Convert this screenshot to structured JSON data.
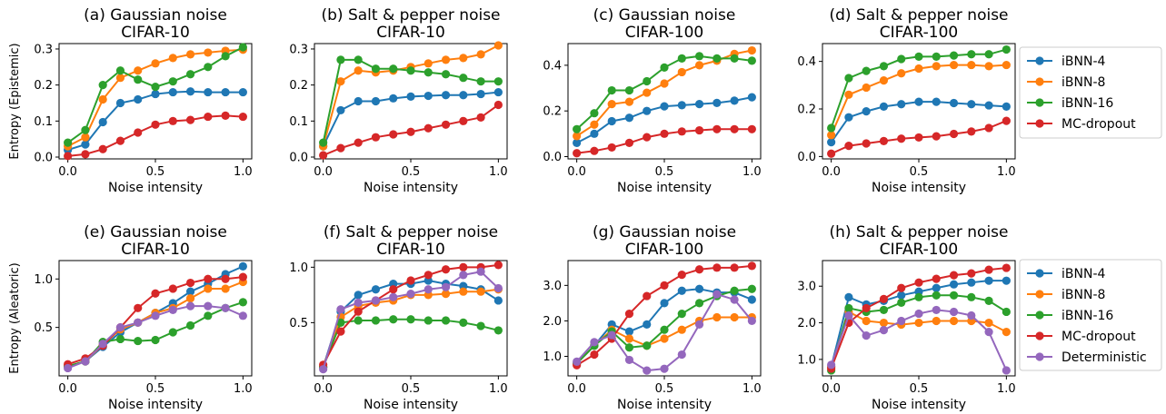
{
  "figure": {
    "row_ylabels": [
      "Entropy (Epistemic)",
      "Entropy (Aleatoric)"
    ]
  },
  "colors": {
    "iBNN-4": "#1f77b4",
    "iBNN-8": "#ff7f0e",
    "iBNN-16": "#2ca02c",
    "MC-dropout": "#d62728",
    "Deterministic": "#9467bd"
  },
  "legends": [
    {
      "row": 0,
      "entries": [
        "iBNN-4",
        "iBNN-8",
        "iBNN-16",
        "MC-dropout"
      ]
    },
    {
      "row": 1,
      "entries": [
        "iBNN-4",
        "iBNN-8",
        "iBNN-16",
        "MC-dropout",
        "Deterministic"
      ]
    }
  ],
  "chart_data": [
    {
      "type": "line",
      "title": "(a) Gaussian noise\nCIFAR-10",
      "xlabel": "Noise intensity",
      "ylabel": "Entropy (Epistemic)",
      "x": [
        0,
        0.1,
        0.2,
        0.3,
        0.4,
        0.5,
        0.6,
        0.7,
        0.8,
        0.9,
        1.0
      ],
      "xlim": [
        -0.05,
        1.05
      ],
      "ylim": [
        -0.005,
        0.315
      ],
      "xticks": [
        0.0,
        0.5,
        1.0
      ],
      "xtick_labels": [
        "0.0",
        "0.5",
        "1.0"
      ],
      "yticks": [
        0.0,
        0.1,
        0.2,
        0.3
      ],
      "ytick_labels": [
        "0.0",
        "0.1",
        "0.2",
        "0.3"
      ],
      "series": [
        {
          "name": "iBNN-4",
          "values": [
            0.02,
            0.035,
            0.097,
            0.15,
            0.16,
            0.175,
            0.18,
            0.182,
            0.18,
            0.18,
            0.18
          ]
        },
        {
          "name": "iBNN-8",
          "values": [
            0.03,
            0.055,
            0.16,
            0.22,
            0.24,
            0.26,
            0.275,
            0.285,
            0.29,
            0.295,
            0.298
          ]
        },
        {
          "name": "iBNN-16",
          "values": [
            0.04,
            0.075,
            0.2,
            0.24,
            0.215,
            0.195,
            0.21,
            0.23,
            0.25,
            0.28,
            0.305
          ]
        },
        {
          "name": "MC-dropout",
          "values": [
            0.003,
            0.008,
            0.022,
            0.045,
            0.068,
            0.09,
            0.1,
            0.103,
            0.112,
            0.115,
            0.112
          ]
        }
      ]
    },
    {
      "type": "line",
      "title": "(b) Salt & pepper noise\nCIFAR-10",
      "xlabel": "Noise intensity",
      "x": [
        0,
        0.1,
        0.2,
        0.3,
        0.4,
        0.5,
        0.6,
        0.7,
        0.8,
        0.9,
        1.0
      ],
      "xlim": [
        -0.05,
        1.05
      ],
      "ylim": [
        -0.005,
        0.315
      ],
      "xticks": [
        0.0,
        0.5,
        1.0
      ],
      "xtick_labels": [
        "0.0",
        "0.5",
        "1.0"
      ],
      "yticks": [
        0.0,
        0.1,
        0.2,
        0.3
      ],
      "ytick_labels": [
        "0.0",
        "0.1",
        "0.2",
        "0.3"
      ],
      "series": [
        {
          "name": "iBNN-4",
          "values": [
            0.03,
            0.13,
            0.155,
            0.155,
            0.163,
            0.168,
            0.17,
            0.172,
            0.172,
            0.175,
            0.18
          ]
        },
        {
          "name": "iBNN-8",
          "values": [
            0.03,
            0.21,
            0.24,
            0.235,
            0.24,
            0.25,
            0.26,
            0.27,
            0.275,
            0.285,
            0.31
          ]
        },
        {
          "name": "iBNN-16",
          "values": [
            0.04,
            0.27,
            0.27,
            0.245,
            0.245,
            0.24,
            0.235,
            0.23,
            0.22,
            0.21,
            0.21
          ]
        },
        {
          "name": "MC-dropout",
          "values": [
            0.005,
            0.025,
            0.04,
            0.055,
            0.063,
            0.07,
            0.08,
            0.09,
            0.1,
            0.11,
            0.145
          ]
        }
      ]
    },
    {
      "type": "line",
      "title": "(c) Gaussian noise\nCIFAR-100",
      "xlabel": "Noise intensity",
      "x": [
        0,
        0.1,
        0.2,
        0.3,
        0.4,
        0.5,
        0.6,
        0.7,
        0.8,
        0.9,
        1.0
      ],
      "xlim": [
        -0.05,
        1.05
      ],
      "ylim": [
        -0.01,
        0.495
      ],
      "xticks": [
        0.0,
        0.5,
        1.0
      ],
      "xtick_labels": [
        "0.0",
        "0.5",
        "1.0"
      ],
      "yticks": [
        0.0,
        0.2,
        0.4
      ],
      "ytick_labels": [
        "0.0",
        "0.2",
        "0.4"
      ],
      "series": [
        {
          "name": "iBNN-4",
          "values": [
            0.06,
            0.1,
            0.155,
            0.17,
            0.2,
            0.22,
            0.225,
            0.23,
            0.235,
            0.245,
            0.26
          ]
        },
        {
          "name": "iBNN-8",
          "values": [
            0.09,
            0.14,
            0.23,
            0.24,
            0.28,
            0.32,
            0.37,
            0.4,
            0.42,
            0.45,
            0.465
          ]
        },
        {
          "name": "iBNN-16",
          "values": [
            0.12,
            0.19,
            0.29,
            0.29,
            0.33,
            0.39,
            0.43,
            0.44,
            0.43,
            0.43,
            0.42
          ]
        },
        {
          "name": "MC-dropout",
          "values": [
            0.015,
            0.025,
            0.04,
            0.06,
            0.085,
            0.1,
            0.11,
            0.115,
            0.12,
            0.12,
            0.12
          ]
        }
      ]
    },
    {
      "type": "line",
      "title": "(d) Salt & pepper noise\nCIFAR-100",
      "xlabel": "Noise intensity",
      "x": [
        0,
        0.1,
        0.2,
        0.3,
        0.4,
        0.5,
        0.6,
        0.7,
        0.8,
        0.9,
        1.0
      ],
      "xlim": [
        -0.05,
        1.05
      ],
      "ylim": [
        -0.01,
        0.475
      ],
      "xticks": [
        0.0,
        0.5,
        1.0
      ],
      "xtick_labels": [
        "0.0",
        "0.5",
        "1.0"
      ],
      "yticks": [
        0.0,
        0.2,
        0.4
      ],
      "ytick_labels": [
        "0.0",
        "0.2",
        "0.4"
      ],
      "series": [
        {
          "name": "iBNN-4",
          "values": [
            0.06,
            0.165,
            0.19,
            0.21,
            0.22,
            0.23,
            0.23,
            0.225,
            0.22,
            0.215,
            0.21
          ]
        },
        {
          "name": "iBNN-8",
          "values": [
            0.09,
            0.26,
            0.29,
            0.32,
            0.35,
            0.37,
            0.38,
            0.385,
            0.385,
            0.38,
            0.385
          ]
        },
        {
          "name": "iBNN-16",
          "values": [
            0.12,
            0.33,
            0.36,
            0.38,
            0.41,
            0.42,
            0.42,
            0.425,
            0.43,
            0.43,
            0.45
          ]
        },
        {
          "name": "MC-dropout",
          "values": [
            0.012,
            0.045,
            0.055,
            0.065,
            0.075,
            0.08,
            0.085,
            0.095,
            0.105,
            0.12,
            0.15
          ]
        }
      ]
    },
    {
      "type": "line",
      "title": "(e) Gaussian noise\nCIFAR-10",
      "xlabel": "Noise intensity",
      "ylabel": "Entropy (Aleatoric)",
      "x": [
        0,
        0.1,
        0.2,
        0.3,
        0.4,
        0.5,
        0.6,
        0.7,
        0.8,
        0.9,
        1.0
      ],
      "xlim": [
        -0.05,
        1.05
      ],
      "ylim": [
        0.0,
        1.19
      ],
      "xticks": [
        0.0,
        0.5,
        1.0
      ],
      "xtick_labels": [
        "0.0",
        "0.5",
        "1.0"
      ],
      "yticks": [
        0.5,
        1.0
      ],
      "ytick_labels": [
        "0.5",
        "1.0"
      ],
      "series": [
        {
          "name": "iBNN-4",
          "values": [
            0.1,
            0.15,
            0.3,
            0.45,
            0.55,
            0.65,
            0.75,
            0.87,
            0.95,
            1.05,
            1.13
          ]
        },
        {
          "name": "iBNN-8",
          "values": [
            0.1,
            0.15,
            0.32,
            0.48,
            0.55,
            0.65,
            0.7,
            0.8,
            0.9,
            0.9,
            0.97
          ]
        },
        {
          "name": "iBNN-16",
          "values": [
            0.1,
            0.15,
            0.35,
            0.38,
            0.36,
            0.37,
            0.45,
            0.52,
            0.62,
            0.7,
            0.76
          ]
        },
        {
          "name": "MC-dropout",
          "values": [
            0.12,
            0.18,
            0.31,
            0.5,
            0.7,
            0.85,
            0.9,
            0.96,
            1.0,
            1.0,
            1.02
          ]
        },
        {
          "name": "Deterministic",
          "values": [
            0.08,
            0.15,
            0.33,
            0.5,
            0.55,
            0.62,
            0.68,
            0.72,
            0.72,
            0.7,
            0.62
          ]
        }
      ]
    },
    {
      "type": "line",
      "title": "(f) Salt & pepper noise\nCIFAR-10",
      "xlabel": "Noise intensity",
      "x": [
        0,
        0.1,
        0.2,
        0.3,
        0.4,
        0.5,
        0.6,
        0.7,
        0.8,
        0.9,
        1.0
      ],
      "xlim": [
        -0.05,
        1.05
      ],
      "ylim": [
        0.02,
        1.06
      ],
      "xticks": [
        0.0,
        0.5,
        1.0
      ],
      "xtick_labels": [
        "0.0",
        "0.5",
        "1.0"
      ],
      "yticks": [
        0.5,
        1.0
      ],
      "ytick_labels": [
        "0.5",
        "1.0"
      ],
      "series": [
        {
          "name": "iBNN-4",
          "values": [
            0.1,
            0.6,
            0.75,
            0.8,
            0.85,
            0.85,
            0.88,
            0.85,
            0.83,
            0.8,
            0.7
          ]
        },
        {
          "name": "iBNN-8",
          "values": [
            0.1,
            0.55,
            0.65,
            0.68,
            0.7,
            0.75,
            0.75,
            0.76,
            0.78,
            0.78,
            0.8
          ]
        },
        {
          "name": "iBNN-16",
          "values": [
            0.1,
            0.5,
            0.52,
            0.52,
            0.53,
            0.53,
            0.52,
            0.52,
            0.5,
            0.47,
            0.43
          ]
        },
        {
          "name": "MC-dropout",
          "values": [
            0.12,
            0.42,
            0.6,
            0.7,
            0.8,
            0.88,
            0.93,
            0.98,
            1.0,
            1.0,
            1.02
          ]
        },
        {
          "name": "Deterministic",
          "values": [
            0.08,
            0.62,
            0.68,
            0.7,
            0.73,
            0.76,
            0.8,
            0.82,
            0.93,
            0.96,
            0.81
          ]
        }
      ]
    },
    {
      "type": "line",
      "title": "(g) Gaussian noise\nCIFAR-100",
      "xlabel": "Noise intensity",
      "x": [
        0,
        0.1,
        0.2,
        0.3,
        0.4,
        0.5,
        0.6,
        0.7,
        0.8,
        0.9,
        1.0
      ],
      "xlim": [
        -0.05,
        1.05
      ],
      "ylim": [
        0.45,
        3.7
      ],
      "xticks": [
        0.0,
        0.5,
        1.0
      ],
      "xtick_labels": [
        "0.0",
        "0.5",
        "1.0"
      ],
      "yticks": [
        1.0,
        2.0,
        3.0
      ],
      "ytick_labels": [
        "1.0",
        "2.0",
        "3.0"
      ],
      "series": [
        {
          "name": "iBNN-4",
          "values": [
            0.8,
            1.3,
            1.9,
            1.7,
            1.9,
            2.5,
            2.85,
            2.9,
            2.8,
            2.8,
            2.6
          ]
        },
        {
          "name": "iBNN-8",
          "values": [
            0.8,
            1.3,
            1.75,
            1.5,
            1.3,
            1.5,
            1.75,
            2.0,
            2.1,
            2.1,
            2.1
          ]
        },
        {
          "name": "iBNN-16",
          "values": [
            0.8,
            1.3,
            1.7,
            1.25,
            1.3,
            1.75,
            2.2,
            2.5,
            2.7,
            2.85,
            2.9
          ]
        },
        {
          "name": "MC-dropout",
          "values": [
            0.75,
            1.05,
            1.5,
            2.2,
            2.7,
            3.0,
            3.3,
            3.45,
            3.5,
            3.5,
            3.55
          ]
        },
        {
          "name": "Deterministic",
          "values": [
            0.85,
            1.4,
            1.6,
            0.9,
            0.6,
            0.65,
            1.05,
            1.9,
            2.75,
            2.6,
            2.0
          ]
        }
      ]
    },
    {
      "type": "line",
      "title": "(h) Salt & pepper noise\nCIFAR-100",
      "xlabel": "Noise intensity",
      "x": [
        0,
        0.1,
        0.2,
        0.3,
        0.4,
        0.5,
        0.6,
        0.7,
        0.8,
        0.9,
        1.0
      ],
      "xlim": [
        -0.05,
        1.05
      ],
      "ylim": [
        0.55,
        3.7
      ],
      "xticks": [
        0.0,
        0.5,
        1.0
      ],
      "xtick_labels": [
        "0.0",
        "0.5",
        "1.0"
      ],
      "yticks": [
        1.0,
        2.0,
        3.0
      ],
      "ytick_labels": [
        "1.0",
        "2.0",
        "3.0"
      ],
      "series": [
        {
          "name": "iBNN-4",
          "values": [
            0.8,
            2.7,
            2.5,
            2.6,
            2.75,
            2.85,
            2.95,
            3.05,
            3.1,
            3.15,
            3.15
          ]
        },
        {
          "name": "iBNN-8",
          "values": [
            0.8,
            2.3,
            2.05,
            2.0,
            1.95,
            2.0,
            2.05,
            2.05,
            2.05,
            2.0,
            1.75
          ]
        },
        {
          "name": "iBNN-16",
          "values": [
            0.7,
            2.4,
            2.3,
            2.35,
            2.55,
            2.7,
            2.75,
            2.75,
            2.7,
            2.6,
            2.3
          ]
        },
        {
          "name": "MC-dropout",
          "values": [
            0.75,
            2.0,
            2.4,
            2.65,
            2.95,
            3.1,
            3.2,
            3.3,
            3.35,
            3.45,
            3.5
          ]
        },
        {
          "name": "Deterministic",
          "values": [
            0.85,
            2.2,
            1.65,
            1.8,
            2.05,
            2.25,
            2.35,
            2.3,
            2.2,
            1.75,
            0.7
          ]
        }
      ]
    }
  ]
}
